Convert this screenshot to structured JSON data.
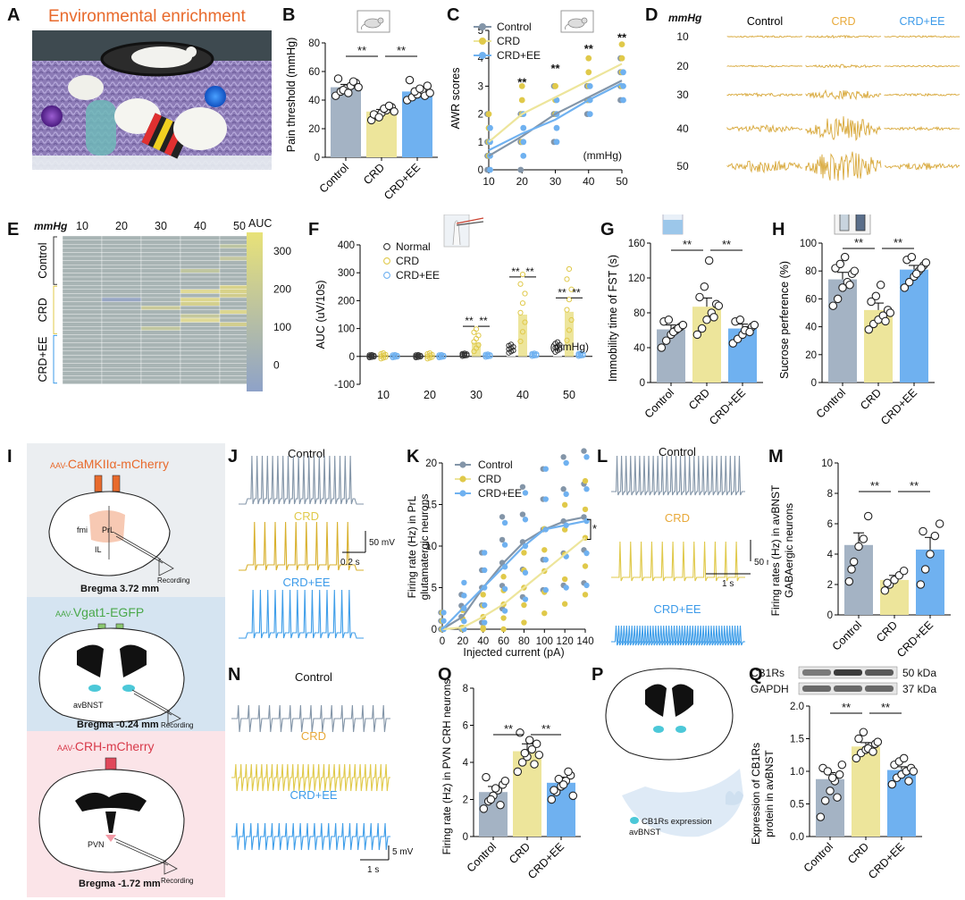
{
  "colors": {
    "control": "#a4b3c4",
    "control_dark": "#808b98",
    "crd": "#ede59b",
    "crd_dark": "#e0c94a",
    "crd_text": "#e8a93a",
    "ee": "#6fb1f0",
    "ee_dark": "#3d9be9",
    "orange": "#e86a2c",
    "green": "#4aa84a",
    "red": "#d83a4a",
    "trace_control": "#8395a8",
    "trace_crd": "#d8b02c",
    "trace_ee": "#3f9ee9",
    "trace_d": "#d8a83a"
  },
  "labels": {
    "A": "A",
    "B": "B",
    "C": "C",
    "D": "D",
    "E": "E",
    "F": "F",
    "G": "G",
    "H": "H",
    "I": "I",
    "J": "J",
    "K": "K",
    "L": "L",
    "M": "M",
    "N": "N",
    "O": "O",
    "P": "P",
    "Q": "Q"
  },
  "groups": [
    "Control",
    "CRD",
    "CRD+EE"
  ],
  "sig": "**",
  "sig_single": "*",
  "panel_a": {
    "title": "Environmental enrichment"
  },
  "panel_b": {
    "chart_data": {
      "type": "bar",
      "ylabel": "Pain threshold (mmHg)",
      "categories": [
        "Control",
        "CRD",
        "CRD+EE"
      ],
      "values": [
        49,
        32,
        46
      ],
      "sem": [
        2,
        1.5,
        2
      ],
      "ylim": [
        0,
        80
      ],
      "yticks": [
        0,
        20,
        40,
        60,
        80
      ],
      "points": [
        [
          43,
          46,
          48,
          50,
          52,
          55,
          47,
          45,
          53,
          49
        ],
        [
          26,
          29,
          31,
          33,
          35,
          30,
          28,
          34,
          36,
          32
        ],
        [
          40,
          42,
          44,
          47,
          50,
          54,
          46,
          48,
          43,
          45
        ]
      ]
    }
  },
  "panel_c": {
    "chart_data": {
      "type": "line",
      "ylabel": "AWR scores",
      "xunit": "(mmHg)",
      "x": [
        10,
        20,
        30,
        40,
        50
      ],
      "ylim": [
        0,
        5
      ],
      "yticks": [
        0,
        1,
        2,
        3,
        4,
        5
      ],
      "series": [
        {
          "name": "Control",
          "values": [
            0.5,
            1.2,
            2.0,
            2.6,
            3.2
          ]
        },
        {
          "name": "CRD",
          "values": [
            1.0,
            2.0,
            2.6,
            3.2,
            3.8
          ]
        },
        {
          "name": "CRD+EE",
          "values": [
            0.7,
            1.3,
            1.8,
            2.5,
            3.1
          ]
        }
      ],
      "sig_x": [
        20,
        30,
        40,
        50
      ],
      "sig_y": [
        3.0,
        3.5,
        4.2,
        4.6
      ]
    }
  },
  "panel_d": {
    "unit": "mmHg",
    "levels": [
      "10",
      "20",
      "30",
      "40",
      "50"
    ],
    "columns": [
      "Control",
      "CRD",
      "CRD+EE"
    ],
    "amplitudes": [
      [
        1,
        1.5,
        1
      ],
      [
        1,
        2,
        1
      ],
      [
        2,
        6,
        1.5
      ],
      [
        4,
        14,
        2
      ],
      [
        7,
        18,
        4
      ]
    ]
  },
  "panel_e": {
    "unit": "mmHg",
    "cols": [
      "10",
      "20",
      "30",
      "40",
      "50"
    ],
    "colorbar_title": "AUC",
    "colorbar_ticks": [
      "300",
      "200",
      "100",
      "0"
    ],
    "rows": [
      "Control",
      "CRD",
      "CRD+EE"
    ],
    "chart_data": {
      "type": "heatmap",
      "columns": [
        "10",
        "20",
        "30",
        "40",
        "50"
      ],
      "row_groups": [
        "Control",
        "CRD",
        "CRD+EE"
      ],
      "range": [
        -70,
        350
      ]
    }
  },
  "panel_f": {
    "chart_data": {
      "type": "bar",
      "ylabel": "AUC (uV/10s)",
      "xunit": "(mmHg)",
      "categories": [
        "10",
        "20",
        "30",
        "40",
        "50"
      ],
      "ylim": [
        -100,
        400
      ],
      "yticks": [
        -100,
        0,
        100,
        200,
        300,
        400
      ],
      "series": [
        {
          "name": "Normal",
          "values": [
            0,
            0,
            5,
            25,
            30
          ]
        },
        {
          "name": "CRD",
          "values": [
            0,
            0,
            50,
            150,
            160
          ]
        },
        {
          "name": "CRD+EE",
          "values": [
            0,
            0,
            2,
            5,
            5
          ]
        }
      ]
    }
  },
  "panel_g": {
    "chart_data": {
      "type": "bar",
      "ylabel": "Immobility time of FST (s)",
      "categories": [
        "Control",
        "CRD",
        "CRD+EE"
      ],
      "values": [
        61,
        87,
        62
      ],
      "sem": [
        5,
        10,
        5
      ],
      "ylim": [
        0,
        160
      ],
      "yticks": [
        0,
        40,
        80,
        120,
        160
      ],
      "points": [
        [
          40,
          48,
          55,
          60,
          64,
          70,
          72,
          58,
          62,
          66
        ],
        [
          55,
          62,
          72,
          80,
          90,
          98,
          110,
          140,
          75,
          88
        ],
        [
          45,
          50,
          55,
          60,
          64,
          70,
          72,
          60,
          58,
          66
        ]
      ]
    }
  },
  "panel_h": {
    "chart_data": {
      "type": "bar",
      "ylabel": "Sucrose perference (%)",
      "categories": [
        "Control",
        "CRD",
        "CRD+EE"
      ],
      "values": [
        74,
        52,
        81
      ],
      "sem": [
        5,
        5,
        3
      ],
      "ylim": [
        0,
        100
      ],
      "yticks": [
        0,
        20,
        40,
        60,
        80,
        100
      ],
      "points": [
        [
          55,
          60,
          68,
          72,
          78,
          82,
          85,
          90,
          70,
          80
        ],
        [
          38,
          42,
          45,
          48,
          52,
          58,
          62,
          70,
          44,
          50
        ],
        [
          68,
          72,
          76,
          80,
          84,
          88,
          90,
          78,
          82,
          86
        ]
      ]
    }
  },
  "panel_i": {
    "a_virus": "AAV-CaMKIIα-mCherry",
    "a_prefix": "AAV-",
    "a_name": "CaMKIIα-mCherry",
    "a_bregma": "Bregma 3.72 mm",
    "a_labels": {
      "fmi": "fmi",
      "prl": "PrL",
      "il": "IL"
    },
    "b_prefix": "AAV-",
    "b_name": "Vgat1-EGFP",
    "b_bregma": "Bregma -0.24 mm",
    "b_region": "avBNST",
    "c_prefix": "AAV-",
    "c_name": "CRH-mCherry",
    "c_bregma": "Bregma -1.72 mm",
    "c_region": "PVN",
    "recording": "Recording"
  },
  "panel_j": {
    "titles": [
      "Control",
      "CRD",
      "CRD+EE"
    ],
    "scale_v": "50 mV",
    "scale_t": "0.2 s",
    "spikes": [
      20,
      10,
      14
    ]
  },
  "panel_k": {
    "chart_data": {
      "type": "line",
      "xlabel": "Injected current (pA)",
      "ylabel1": "Firing rate (Hz) in PrL",
      "ylabel2": "glutamatergic neurons",
      "x": [
        0,
        20,
        40,
        60,
        80,
        100,
        120,
        140
      ],
      "ylim": [
        0,
        20
      ],
      "yticks": [
        0,
        5,
        10,
        15,
        20
      ],
      "series": [
        {
          "name": "Control",
          "values": [
            0,
            1.5,
            5,
            8,
            10.5,
            12,
            13,
            13.5
          ]
        },
        {
          "name": "CRD",
          "values": [
            0,
            0.2,
            1.5,
            3,
            5,
            7,
            9,
            11
          ]
        },
        {
          "name": "CRD+EE",
          "values": [
            0,
            2.5,
            5,
            7.5,
            10,
            12,
            12.5,
            13
          ]
        }
      ]
    }
  },
  "panel_l": {
    "titles": [
      "Control",
      "CRD",
      "CRD+EE"
    ],
    "scale_v": "50 mV",
    "scale_t": "1 s",
    "spikes": [
      28,
      12,
      48
    ]
  },
  "panel_m": {
    "chart_data": {
      "type": "bar",
      "ylabel1": "Firing rates (Hz) in  avBNST",
      "ylabel2": "GABAergic neurons",
      "categories": [
        "Control",
        "CRD",
        "CRD+EE"
      ],
      "values": [
        4.6,
        2.3,
        4.3
      ],
      "sem": [
        0.8,
        0.3,
        0.8
      ],
      "ylim": [
        0,
        10
      ],
      "yticks": [
        0,
        2,
        4,
        6,
        8,
        10
      ],
      "points": [
        [
          2.2,
          3.5,
          4.5,
          5,
          6.5,
          3
        ],
        [
          1.6,
          2,
          2.3,
          2.6,
          2.9,
          2.1
        ],
        [
          2,
          3,
          4,
          5.2,
          6,
          5.5
        ]
      ]
    }
  },
  "panel_n": {
    "titles": [
      "Control",
      "CRD",
      "CRD+EE"
    ],
    "scale_v": "5 mV",
    "scale_t": "1 s",
    "spikes": [
      15,
      30,
      22
    ]
  },
  "panel_o": {
    "chart_data": {
      "type": "bar",
      "ylabel": "Firing rate (Hz) in PVN CRH neurons",
      "categories": [
        "Control",
        "CRD",
        "CRD+EE"
      ],
      "values": [
        2.4,
        4.6,
        2.9
      ],
      "sem": [
        0.3,
        0.4,
        0.3
      ],
      "ylim": [
        0,
        8
      ],
      "yticks": [
        0,
        2,
        4,
        6,
        8
      ],
      "points": [
        [
          1.5,
          1.9,
          2.2,
          2.5,
          2.8,
          3.2,
          2.0,
          2.6,
          1.7,
          3.0
        ],
        [
          3.5,
          4,
          4.3,
          4.7,
          5,
          5.6,
          4.5,
          5.2,
          3.9,
          4.4
        ],
        [
          2,
          2.4,
          2.7,
          3,
          3.3,
          2.5,
          3.1,
          2.8,
          3.5,
          2.2
        ]
      ]
    }
  },
  "panel_p": {
    "legend": "CB1Rs expression",
    "region": "avBNST"
  },
  "panel_q": {
    "blot": [
      {
        "name": "CB1Rs",
        "kda": "50 kDa"
      },
      {
        "name": "GAPDH",
        "kda": "37 kDa"
      }
    ],
    "chart_data": {
      "type": "bar",
      "ylabel1": "Expression of CB1Rs",
      "ylabel2": "protein in avBNST",
      "categories": [
        "Control",
        "CRD",
        "CRD+EE"
      ],
      "values": [
        0.88,
        1.38,
        1.02
      ],
      "sem": [
        0.1,
        0.06,
        0.05
      ],
      "ylim": [
        0,
        2
      ],
      "yticks": [
        0,
        0.5,
        1.0,
        1.5,
        2.0
      ],
      "ytick_labels": [
        "0.0",
        "0.5",
        "1.0",
        "1.5",
        "2.0"
      ],
      "points": [
        [
          0.3,
          0.55,
          0.7,
          0.85,
          0.95,
          1.05,
          1.0,
          0.9,
          0.6,
          1.1
        ],
        [
          1.2,
          1.28,
          1.33,
          1.38,
          1.42,
          1.5,
          1.6,
          1.35,
          1.3,
          1.45
        ],
        [
          0.8,
          0.9,
          0.95,
          1.0,
          1.05,
          1.1,
          1.15,
          1.2,
          0.85,
          1.0
        ]
      ]
    }
  }
}
